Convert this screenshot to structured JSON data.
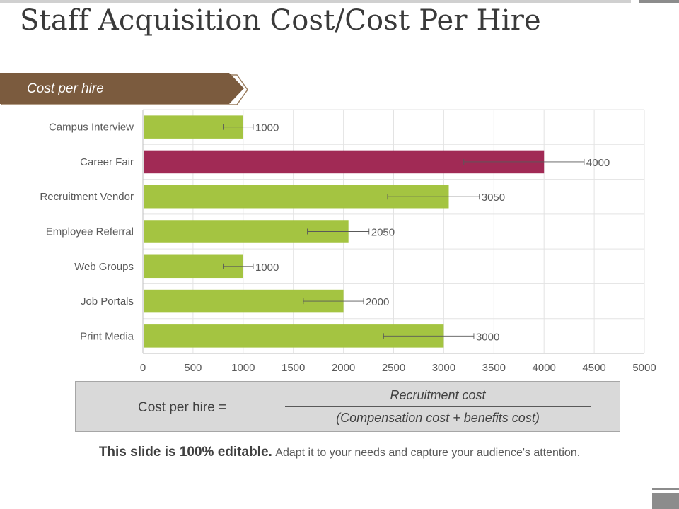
{
  "slide": {
    "title": "Staff Acquisition Cost/Cost Per Hire",
    "banner_label": "Cost per hire"
  },
  "chart_data": {
    "type": "bar",
    "orientation": "horizontal",
    "categories": [
      "Campus Interview",
      "Career Fair",
      "Recruitment Vendor",
      "Employee Referral",
      "Web Groups",
      "Job Portals",
      "Print Media"
    ],
    "values": [
      1000,
      4000,
      3050,
      2050,
      1000,
      2000,
      3000
    ],
    "data_labels": [
      "1000",
      "4000",
      "3050",
      "2050",
      "1000",
      "2000",
      "3000"
    ],
    "error_bars": true,
    "highlight_category": "Career Fair",
    "colors": {
      "default": "#a4c441",
      "highlight": "#a12a55"
    },
    "xlim": [
      0,
      5000
    ],
    "x_ticks": [
      0,
      500,
      1000,
      1500,
      2000,
      2500,
      3000,
      3500,
      4000,
      4500,
      5000
    ],
    "grid": true,
    "title": "",
    "xlabel": "",
    "ylabel": ""
  },
  "formula": {
    "label": "Cost per hire =",
    "numerator": "Recruitment cost",
    "denominator": "(Compensation cost + benefits cost)"
  },
  "footer": {
    "bold": "This slide is 100% editable.",
    "normal": "Adapt it to your needs and capture your audience's attention."
  },
  "theme": {
    "banner_color": "#7b5b3e",
    "title_color": "#3a3a3a"
  }
}
